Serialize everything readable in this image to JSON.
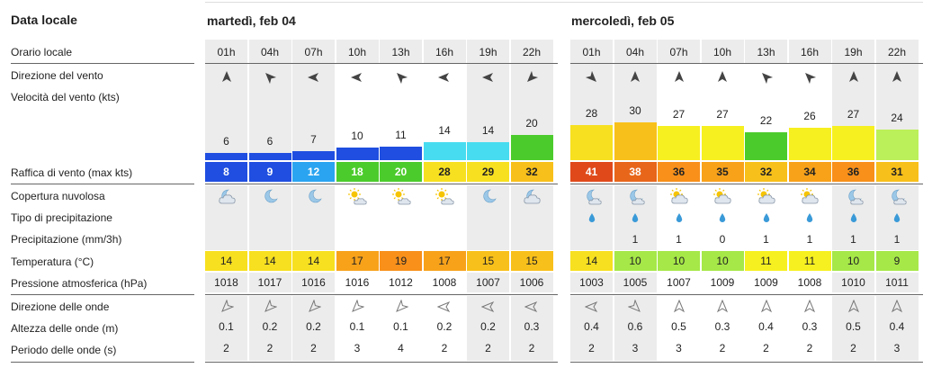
{
  "title": "Data locale",
  "days": [
    {
      "label": "martedì, feb 04"
    },
    {
      "label": "mercoledì, feb 05"
    }
  ],
  "row_labels": {
    "local_time": "Orario locale",
    "wind_dir": "Direzione del vento",
    "wind_speed": "Velocità del vento  (kts)",
    "gust": "Raffica di vento  (max kts)",
    "cloud": "Copertura nuvolosa",
    "precip_type": "Tipo di precipitazione",
    "precip": "Precipitazione  (mm/3h)",
    "temp": "Temperatura  (°C)",
    "pressure": "Pressione atmosferica  (hPa)",
    "wave_dir": "Direzione delle onde",
    "wave_height": "Altezza delle onde  (m)",
    "wave_period": "Periodo delle onde  (s)"
  },
  "columns": [
    {
      "hour": "01h",
      "wind_dir": "S",
      "wind_speed": "6",
      "wind_color": "#1f4ee0",
      "gust": "8",
      "gust_color": "#1f4ee0",
      "cloud": "night-cloudy",
      "precip_type": "",
      "precip": "",
      "temp": "14",
      "temp_color": "#f7e020",
      "pressure": "1018",
      "wave_dir": "NE",
      "wave_height": "0.1",
      "wave_period": "2",
      "bg": "#ececec"
    },
    {
      "hour": "04h",
      "wind_dir": "SE",
      "wind_speed": "6",
      "wind_color": "#1f4ee0",
      "gust": "9",
      "gust_color": "#1f4ee0",
      "cloud": "night",
      "precip_type": "",
      "precip": "",
      "temp": "14",
      "temp_color": "#f7e020",
      "pressure": "1017",
      "wave_dir": "NE",
      "wave_height": "0.2",
      "wave_period": "2",
      "bg": "#ececec"
    },
    {
      "hour": "07h",
      "wind_dir": "E",
      "wind_speed": "7",
      "wind_color": "#1f4ee0",
      "gust": "12",
      "gust_color": "#2aa4f0",
      "cloud": "night",
      "precip_type": "",
      "precip": "",
      "temp": "14",
      "temp_color": "#f7e020",
      "pressure": "1016",
      "wave_dir": "NE",
      "wave_height": "0.2",
      "wave_period": "2",
      "bg": "#ececec"
    },
    {
      "hour": "10h",
      "wind_dir": "E",
      "wind_speed": "10",
      "wind_color": "#1f4ee0",
      "gust": "18",
      "gust_color": "#4ccc2c",
      "cloud": "sun-cloud",
      "precip_type": "",
      "precip": "",
      "temp": "17",
      "temp_color": "#f8a21a",
      "pressure": "1016",
      "wave_dir": "NE",
      "wave_height": "0.1",
      "wave_period": "3",
      "bg": "#ffffff"
    },
    {
      "hour": "13h",
      "wind_dir": "SE",
      "wind_speed": "11",
      "wind_color": "#1f4ee0",
      "gust": "20",
      "gust_color": "#4ccc2c",
      "cloud": "sun-cloud",
      "precip_type": "",
      "precip": "",
      "temp": "19",
      "temp_color": "#f8901a",
      "pressure": "1012",
      "wave_dir": "NE",
      "wave_height": "0.1",
      "wave_period": "4",
      "bg": "#ffffff"
    },
    {
      "hour": "16h",
      "wind_dir": "E",
      "wind_speed": "14",
      "wind_color": "#48dcf0",
      "gust": "28",
      "gust_color": "#f7e020",
      "cloud": "sun-cloud",
      "precip_type": "",
      "precip": "",
      "temp": "17",
      "temp_color": "#f8a21a",
      "pressure": "1008",
      "wave_dir": "E",
      "wave_height": "0.2",
      "wave_period": "2",
      "bg": "#ffffff"
    },
    {
      "hour": "19h",
      "wind_dir": "E",
      "wind_speed": "14",
      "wind_color": "#48dcf0",
      "gust": "29",
      "gust_color": "#f7e020",
      "cloud": "night",
      "precip_type": "",
      "precip": "",
      "temp": "15",
      "temp_color": "#f8c01a",
      "pressure": "1007",
      "wave_dir": "E",
      "wave_height": "0.2",
      "wave_period": "2",
      "bg": "#ececec"
    },
    {
      "hour": "22h",
      "wind_dir": "NE",
      "wind_speed": "20",
      "wind_color": "#4ccc2c",
      "gust": "32",
      "gust_color": "#f8c01a",
      "cloud": "night-cloudy",
      "precip_type": "",
      "precip": "",
      "temp": "15",
      "temp_color": "#f8c01a",
      "pressure": "1006",
      "wave_dir": "E",
      "wave_height": "0.3",
      "wave_period": "2",
      "bg": "#ececec"
    },
    {
      "hour": "01h",
      "wind_dir": "NW",
      "wind_speed": "28",
      "wind_color": "#f7e020",
      "gust": "41",
      "gust_color": "#e04a1a",
      "cloud": "night-rain",
      "precip_type": "drop",
      "precip": "",
      "temp": "14",
      "temp_color": "#f7e020",
      "pressure": "1003",
      "wave_dir": "E",
      "wave_height": "0.4",
      "wave_period": "2",
      "bg": "#ececec"
    },
    {
      "hour": "04h",
      "wind_dir": "S",
      "wind_speed": "30",
      "wind_color": "#f8c01a",
      "gust": "38",
      "gust_color": "#e8661a",
      "cloud": "night-rain",
      "precip_type": "drop",
      "precip": "1",
      "temp": "10",
      "temp_color": "#a6e848",
      "pressure": "1005",
      "wave_dir": "NW",
      "wave_height": "0.6",
      "wave_period": "3",
      "bg": "#ececec"
    },
    {
      "hour": "07h",
      "wind_dir": "S",
      "wind_speed": "27",
      "wind_color": "#f7f020",
      "gust": "36",
      "gust_color": "#f8901a",
      "cloud": "sun-cloud-rain",
      "precip_type": "drop",
      "precip": "1",
      "temp": "10",
      "temp_color": "#a6e848",
      "pressure": "1007",
      "wave_dir": "S",
      "wave_height": "0.5",
      "wave_period": "3",
      "bg": "#ffffff"
    },
    {
      "hour": "10h",
      "wind_dir": "S",
      "wind_speed": "27",
      "wind_color": "#f7f020",
      "gust": "35",
      "gust_color": "#f8a21a",
      "cloud": "sun-cloud-rain",
      "precip_type": "drop",
      "precip": "0",
      "temp": "10",
      "temp_color": "#a6e848",
      "pressure": "1009",
      "wave_dir": "S",
      "wave_height": "0.3",
      "wave_period": "2",
      "bg": "#ffffff"
    },
    {
      "hour": "13h",
      "wind_dir": "SE",
      "wind_speed": "22",
      "wind_color": "#4ccc2c",
      "gust": "32",
      "gust_color": "#f8c01a",
      "cloud": "sun-cloud-rain",
      "precip_type": "drop",
      "precip": "1",
      "temp": "11",
      "temp_color": "#f7f020",
      "pressure": "1009",
      "wave_dir": "S",
      "wave_height": "0.4",
      "wave_period": "2",
      "bg": "#ffffff"
    },
    {
      "hour": "16h",
      "wind_dir": "SE",
      "wind_speed": "26",
      "wind_color": "#f7f020",
      "gust": "34",
      "gust_color": "#f8a21a",
      "cloud": "sun-cloud-rain",
      "precip_type": "drop",
      "precip": "1",
      "temp": "11",
      "temp_color": "#f7f020",
      "pressure": "1008",
      "wave_dir": "S",
      "wave_height": "0.3",
      "wave_period": "2",
      "bg": "#ffffff"
    },
    {
      "hour": "19h",
      "wind_dir": "S",
      "wind_speed": "27",
      "wind_color": "#f7f020",
      "gust": "36",
      "gust_color": "#f8901a",
      "cloud": "night-rain",
      "precip_type": "drop",
      "precip": "1",
      "temp": "10",
      "temp_color": "#a6e848",
      "pressure": "1010",
      "wave_dir": "S",
      "wave_height": "0.5",
      "wave_period": "2",
      "bg": "#ececec"
    },
    {
      "hour": "22h",
      "wind_dir": "S",
      "wind_speed": "24",
      "wind_color": "#bcf05a",
      "gust": "31",
      "gust_color": "#f8c01a",
      "cloud": "night-rain",
      "precip_type": "drop",
      "precip": "1",
      "temp": "9",
      "temp_color": "#a6e848",
      "pressure": "1011",
      "wave_dir": "S",
      "wave_height": "0.4",
      "wave_period": "3",
      "bg": "#ececec"
    }
  ]
}
